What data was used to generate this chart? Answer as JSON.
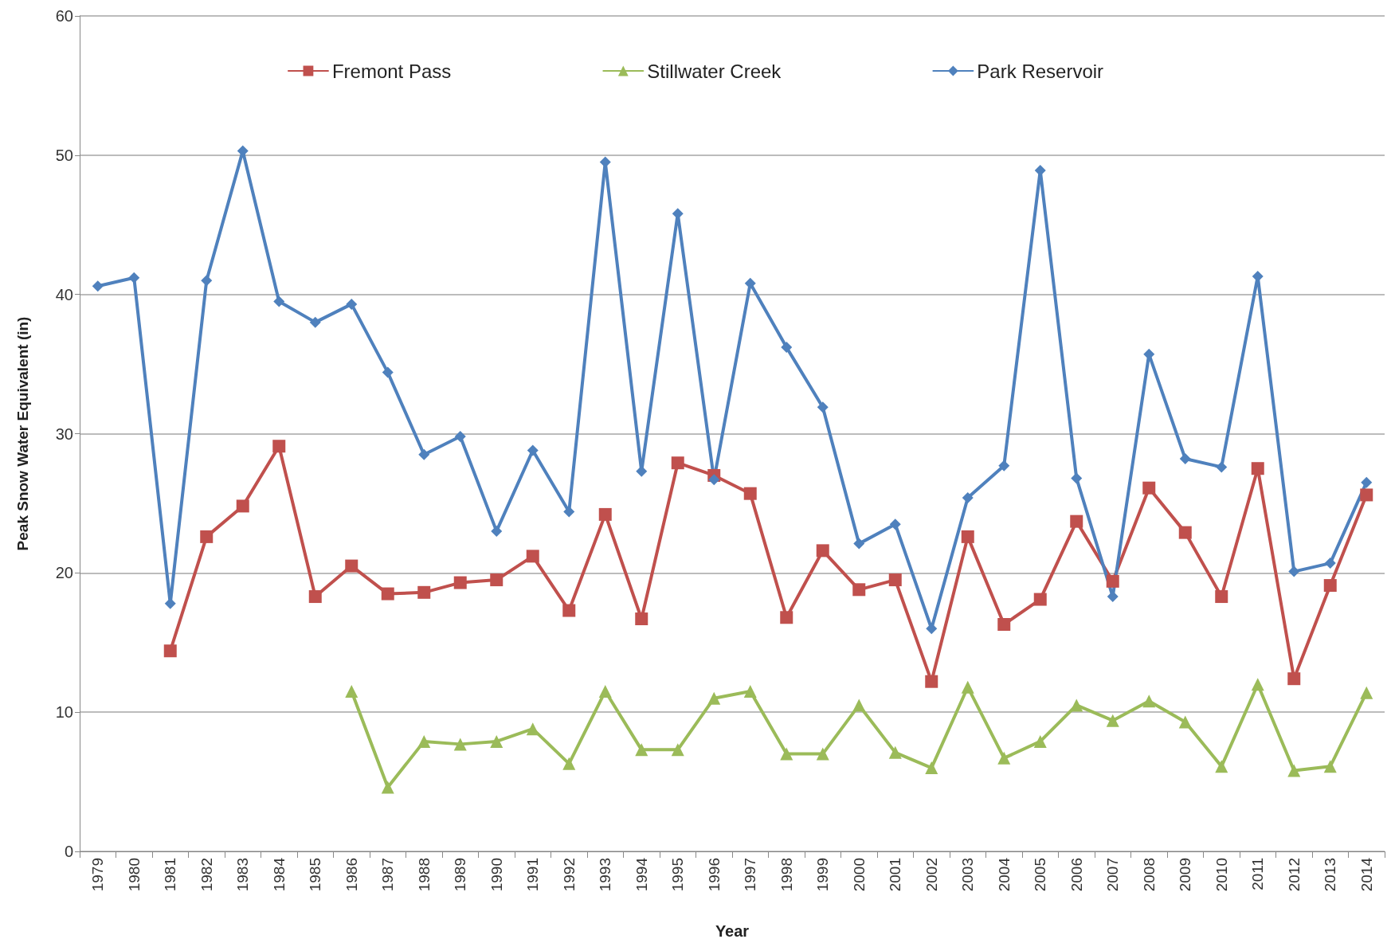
{
  "chart_data": {
    "type": "line",
    "xlabel": "Year",
    "ylabel": "Peak Snow Water Equivalent (in)",
    "categories": [
      "1979",
      "1980",
      "1981",
      "1982",
      "1983",
      "1984",
      "1985",
      "1986",
      "1987",
      "1988",
      "1989",
      "1990",
      "1991",
      "1992",
      "1993",
      "1994",
      "1995",
      "1996",
      "1997",
      "1998",
      "1999",
      "2000",
      "2001",
      "2002",
      "2003",
      "2004",
      "2005",
      "2006",
      "2007",
      "2008",
      "2009",
      "2010",
      "2011",
      "2012",
      "2013",
      "2014"
    ],
    "series": [
      {
        "name": "Fremont Pass",
        "color": "#c0504d",
        "marker": "square",
        "values": [
          null,
          null,
          14.4,
          22.6,
          24.8,
          29.1,
          18.3,
          20.5,
          18.5,
          18.6,
          19.3,
          19.5,
          21.2,
          17.3,
          24.2,
          16.7,
          27.9,
          27.0,
          25.7,
          16.8,
          21.6,
          18.8,
          19.5,
          12.2,
          22.6,
          16.3,
          18.1,
          23.7,
          19.4,
          26.1,
          22.9,
          18.3,
          27.5,
          12.4,
          19.1,
          25.6
        ]
      },
      {
        "name": "Stillwater Creek",
        "color": "#9bbb59",
        "marker": "triangle",
        "values": [
          null,
          null,
          null,
          null,
          null,
          null,
          null,
          11.5,
          4.6,
          7.9,
          7.7,
          7.9,
          8.8,
          6.3,
          11.5,
          7.3,
          7.3,
          11.0,
          11.5,
          7.0,
          7.0,
          10.5,
          7.1,
          6.0,
          11.8,
          6.7,
          7.9,
          10.5,
          9.4,
          10.8,
          9.3,
          6.1,
          12.0,
          5.8,
          6.1,
          11.4
        ]
      },
      {
        "name": "Park Reservoir",
        "color": "#4f81bd",
        "marker": "diamond",
        "values": [
          40.6,
          41.2,
          17.8,
          41.0,
          50.3,
          39.5,
          38.0,
          39.3,
          34.4,
          28.5,
          29.8,
          23.0,
          28.8,
          24.4,
          49.5,
          27.3,
          45.8,
          26.7,
          40.8,
          36.2,
          31.9,
          22.1,
          23.5,
          16.0,
          25.4,
          27.7,
          48.9,
          26.8,
          18.3,
          35.7,
          28.2,
          27.6,
          41.3,
          20.1,
          20.7,
          26.5
        ]
      }
    ],
    "ylim": [
      0,
      60
    ],
    "yticks": [
      0,
      10,
      20,
      30,
      40,
      50,
      60
    ],
    "grid": "y",
    "legend": "top",
    "line_style": "solid"
  }
}
